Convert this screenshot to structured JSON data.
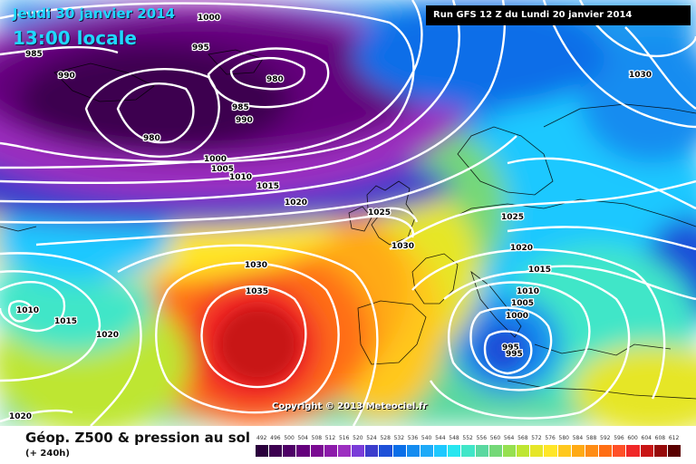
{
  "header": {
    "date": "Jeudi 30 janvier 2014",
    "time": "13:00 locale",
    "run": "Run GFS 12 Z du Lundi 20 janvier 2014"
  },
  "copyright": "Copyright © 2013 Meteociel.fr",
  "legend": {
    "title": "Géop. Z500 & pression au sol",
    "subtitle": "(+ 240h)",
    "values": [
      "492",
      "496",
      "500",
      "504",
      "508",
      "512",
      "516",
      "520",
      "524",
      "528",
      "532",
      "536",
      "540",
      "544",
      "548",
      "552",
      "556",
      "560",
      "564",
      "568",
      "572",
      "576",
      "580",
      "584",
      "588",
      "592",
      "596",
      "600",
      "604",
      "608",
      "612"
    ],
    "colors": [
      "#2a003c",
      "#3c0050",
      "#4e0066",
      "#64007c",
      "#7a0a92",
      "#8c1aaa",
      "#9c2fc0",
      "#7a3cd8",
      "#3c3ccc",
      "#1e50d8",
      "#0a6ee8",
      "#148cf0",
      "#1eaaf8",
      "#1ec8ff",
      "#28e6f0",
      "#40e6c8",
      "#5ad8a0",
      "#74d878",
      "#96e050",
      "#bee632",
      "#e6e628",
      "#ffe628",
      "#ffc81e",
      "#ffaa14",
      "#ff8c14",
      "#ff6e14",
      "#ff5028",
      "#f02828",
      "#c81414",
      "#960a0a",
      "#5a0000"
    ]
  },
  "isobars": [
    {
      "label": "1000",
      "id": "iso-1000-top"
    },
    {
      "label": "985",
      "id": "iso-985-nw"
    },
    {
      "label": "990",
      "id": "iso-990-nw"
    },
    {
      "label": "995",
      "id": "iso-995-n"
    },
    {
      "label": "980",
      "id": "iso-980-ne"
    },
    {
      "label": "985",
      "id": "iso-985-c"
    },
    {
      "label": "990",
      "id": "iso-990-c"
    },
    {
      "label": "980",
      "id": "iso-980-low"
    },
    {
      "label": "1000",
      "id": "iso-1000-mid"
    },
    {
      "label": "1005",
      "id": "iso-1005"
    },
    {
      "label": "1010",
      "id": "iso-1010"
    },
    {
      "label": "1015",
      "id": "iso-1015"
    },
    {
      "label": "1020",
      "id": "iso-1020"
    },
    {
      "label": "1025",
      "id": "iso-1025-uk"
    },
    {
      "label": "1030",
      "id": "iso-1030-uk"
    },
    {
      "label": "1030",
      "id": "iso-1030-ne"
    },
    {
      "label": "1025",
      "id": "iso-1025-eu"
    },
    {
      "label": "1020",
      "id": "iso-1020-eu"
    },
    {
      "label": "1015",
      "id": "iso-1015-eu"
    },
    {
      "label": "1010",
      "id": "iso-1010-eu"
    },
    {
      "label": "1005",
      "id": "iso-1005-eu"
    },
    {
      "label": "1000",
      "id": "iso-1000-eu"
    },
    {
      "label": "995",
      "id": "iso-995-a"
    },
    {
      "label": "995",
      "id": "iso-995-b"
    },
    {
      "label": "1030",
      "id": "iso-1030-az"
    },
    {
      "label": "1035",
      "id": "iso-1035-az"
    },
    {
      "label": "1010",
      "id": "iso-1010-w"
    },
    {
      "label": "1015",
      "id": "iso-1015-w"
    },
    {
      "label": "1020",
      "id": "iso-1020-w"
    },
    {
      "label": "1020",
      "id": "iso-1020-sw"
    }
  ]
}
